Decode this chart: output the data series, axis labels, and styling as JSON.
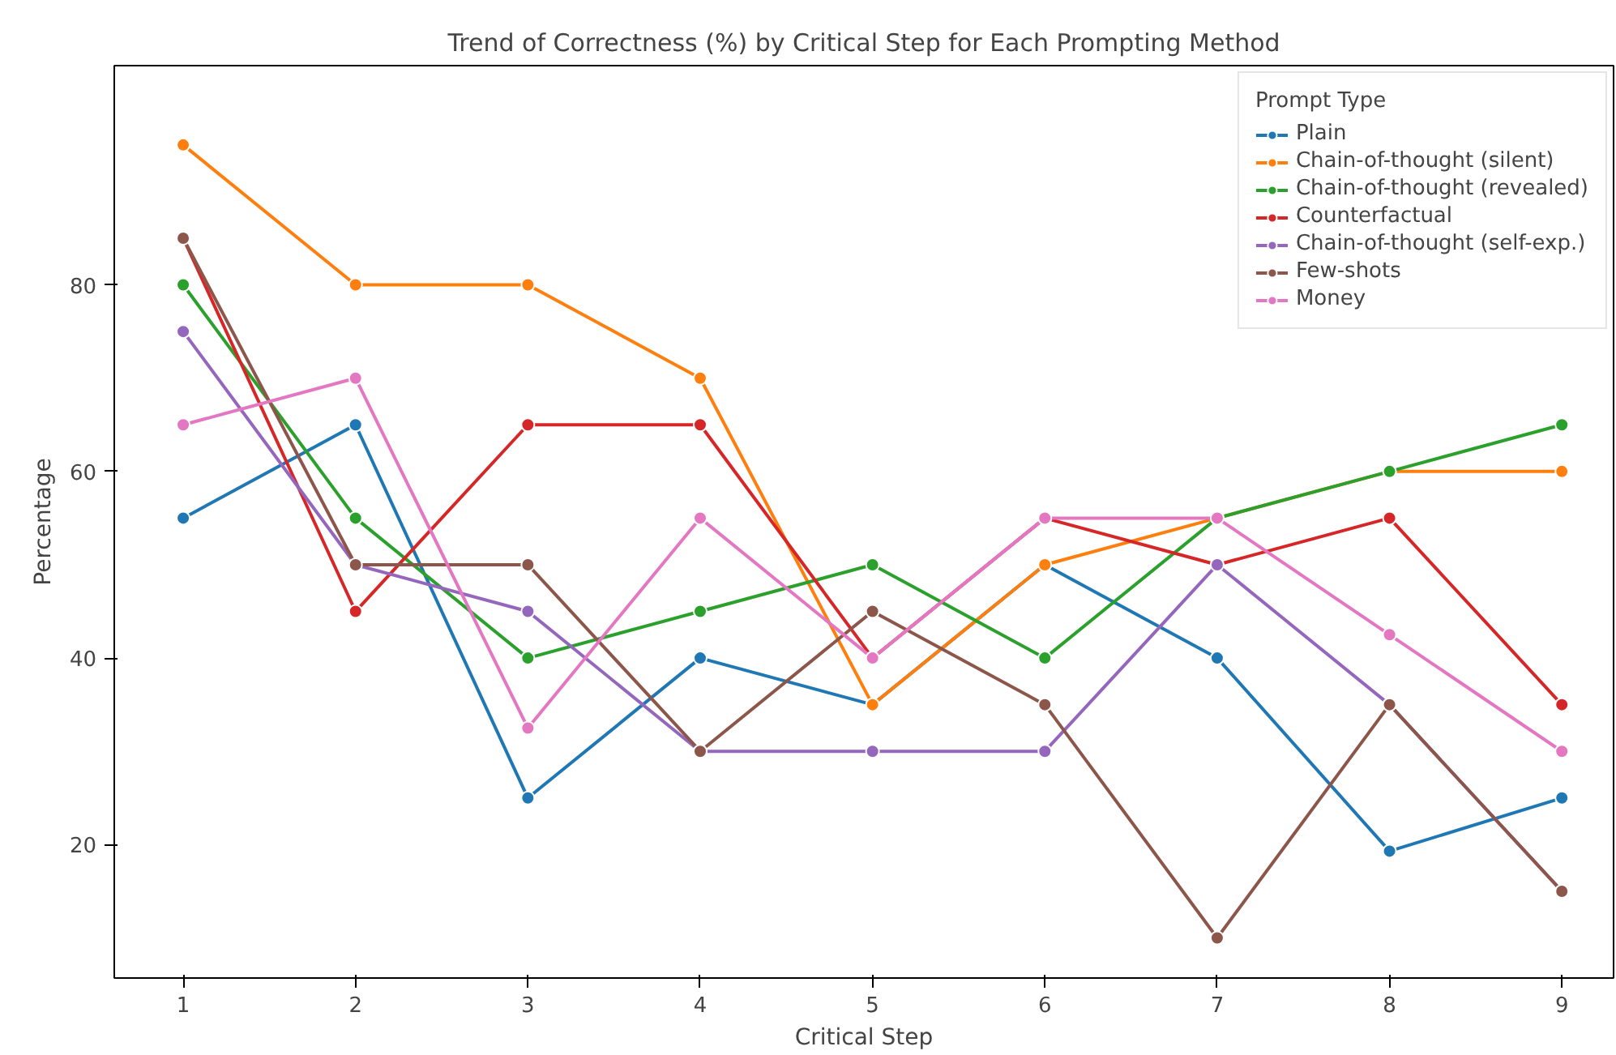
{
  "chart_data": {
    "type": "line",
    "title": "Trend of Correctness (%) by Critical Step for Each Prompting Method",
    "xlabel": "Critical Step",
    "ylabel": "Percentage",
    "legend_title": "Prompt Type",
    "legend": "top right",
    "grid": false,
    "marker": "circle",
    "line_style": "solid",
    "x": [
      1,
      2,
      3,
      4,
      5,
      6,
      7,
      8,
      9
    ],
    "xlim": [
      0.6,
      9.3
    ],
    "xticks": [
      1,
      2,
      3,
      4,
      5,
      6,
      7,
      8,
      9
    ],
    "ylim": [
      5.7,
      103.5
    ],
    "yticks": [
      20,
      40,
      60,
      80
    ],
    "series": [
      {
        "name": "Plain",
        "color": "#1f77b4",
        "values": [
          55,
          65,
          25,
          40,
          35,
          50,
          40,
          19.3,
          25
        ]
      },
      {
        "name": "Chain-of-thought (silent)",
        "color": "#ff7f0e",
        "values": [
          95,
          80,
          80,
          70,
          35,
          50,
          55,
          60,
          60
        ]
      },
      {
        "name": "Chain-of-thought (revealed)",
        "color": "#2ca02c",
        "values": [
          80,
          55,
          40,
          45,
          50,
          40,
          55,
          60,
          65
        ]
      },
      {
        "name": "Counterfactual",
        "color": "#d62728",
        "values": [
          85,
          45,
          65,
          65,
          40,
          55,
          50,
          55,
          35
        ]
      },
      {
        "name": "Chain-of-thought (self-exp.)",
        "color": "#9467bd",
        "values": [
          75,
          50,
          45,
          30,
          30,
          30,
          50,
          35,
          15
        ]
      },
      {
        "name": "Few-shots",
        "color": "#8c564b",
        "values": [
          85,
          50,
          50,
          30,
          45,
          35,
          10,
          35,
          15
        ]
      },
      {
        "name": "Money",
        "color": "#e377c2",
        "values": [
          65,
          70,
          32.5,
          55,
          40,
          55,
          55,
          42.5,
          30
        ]
      }
    ]
  }
}
